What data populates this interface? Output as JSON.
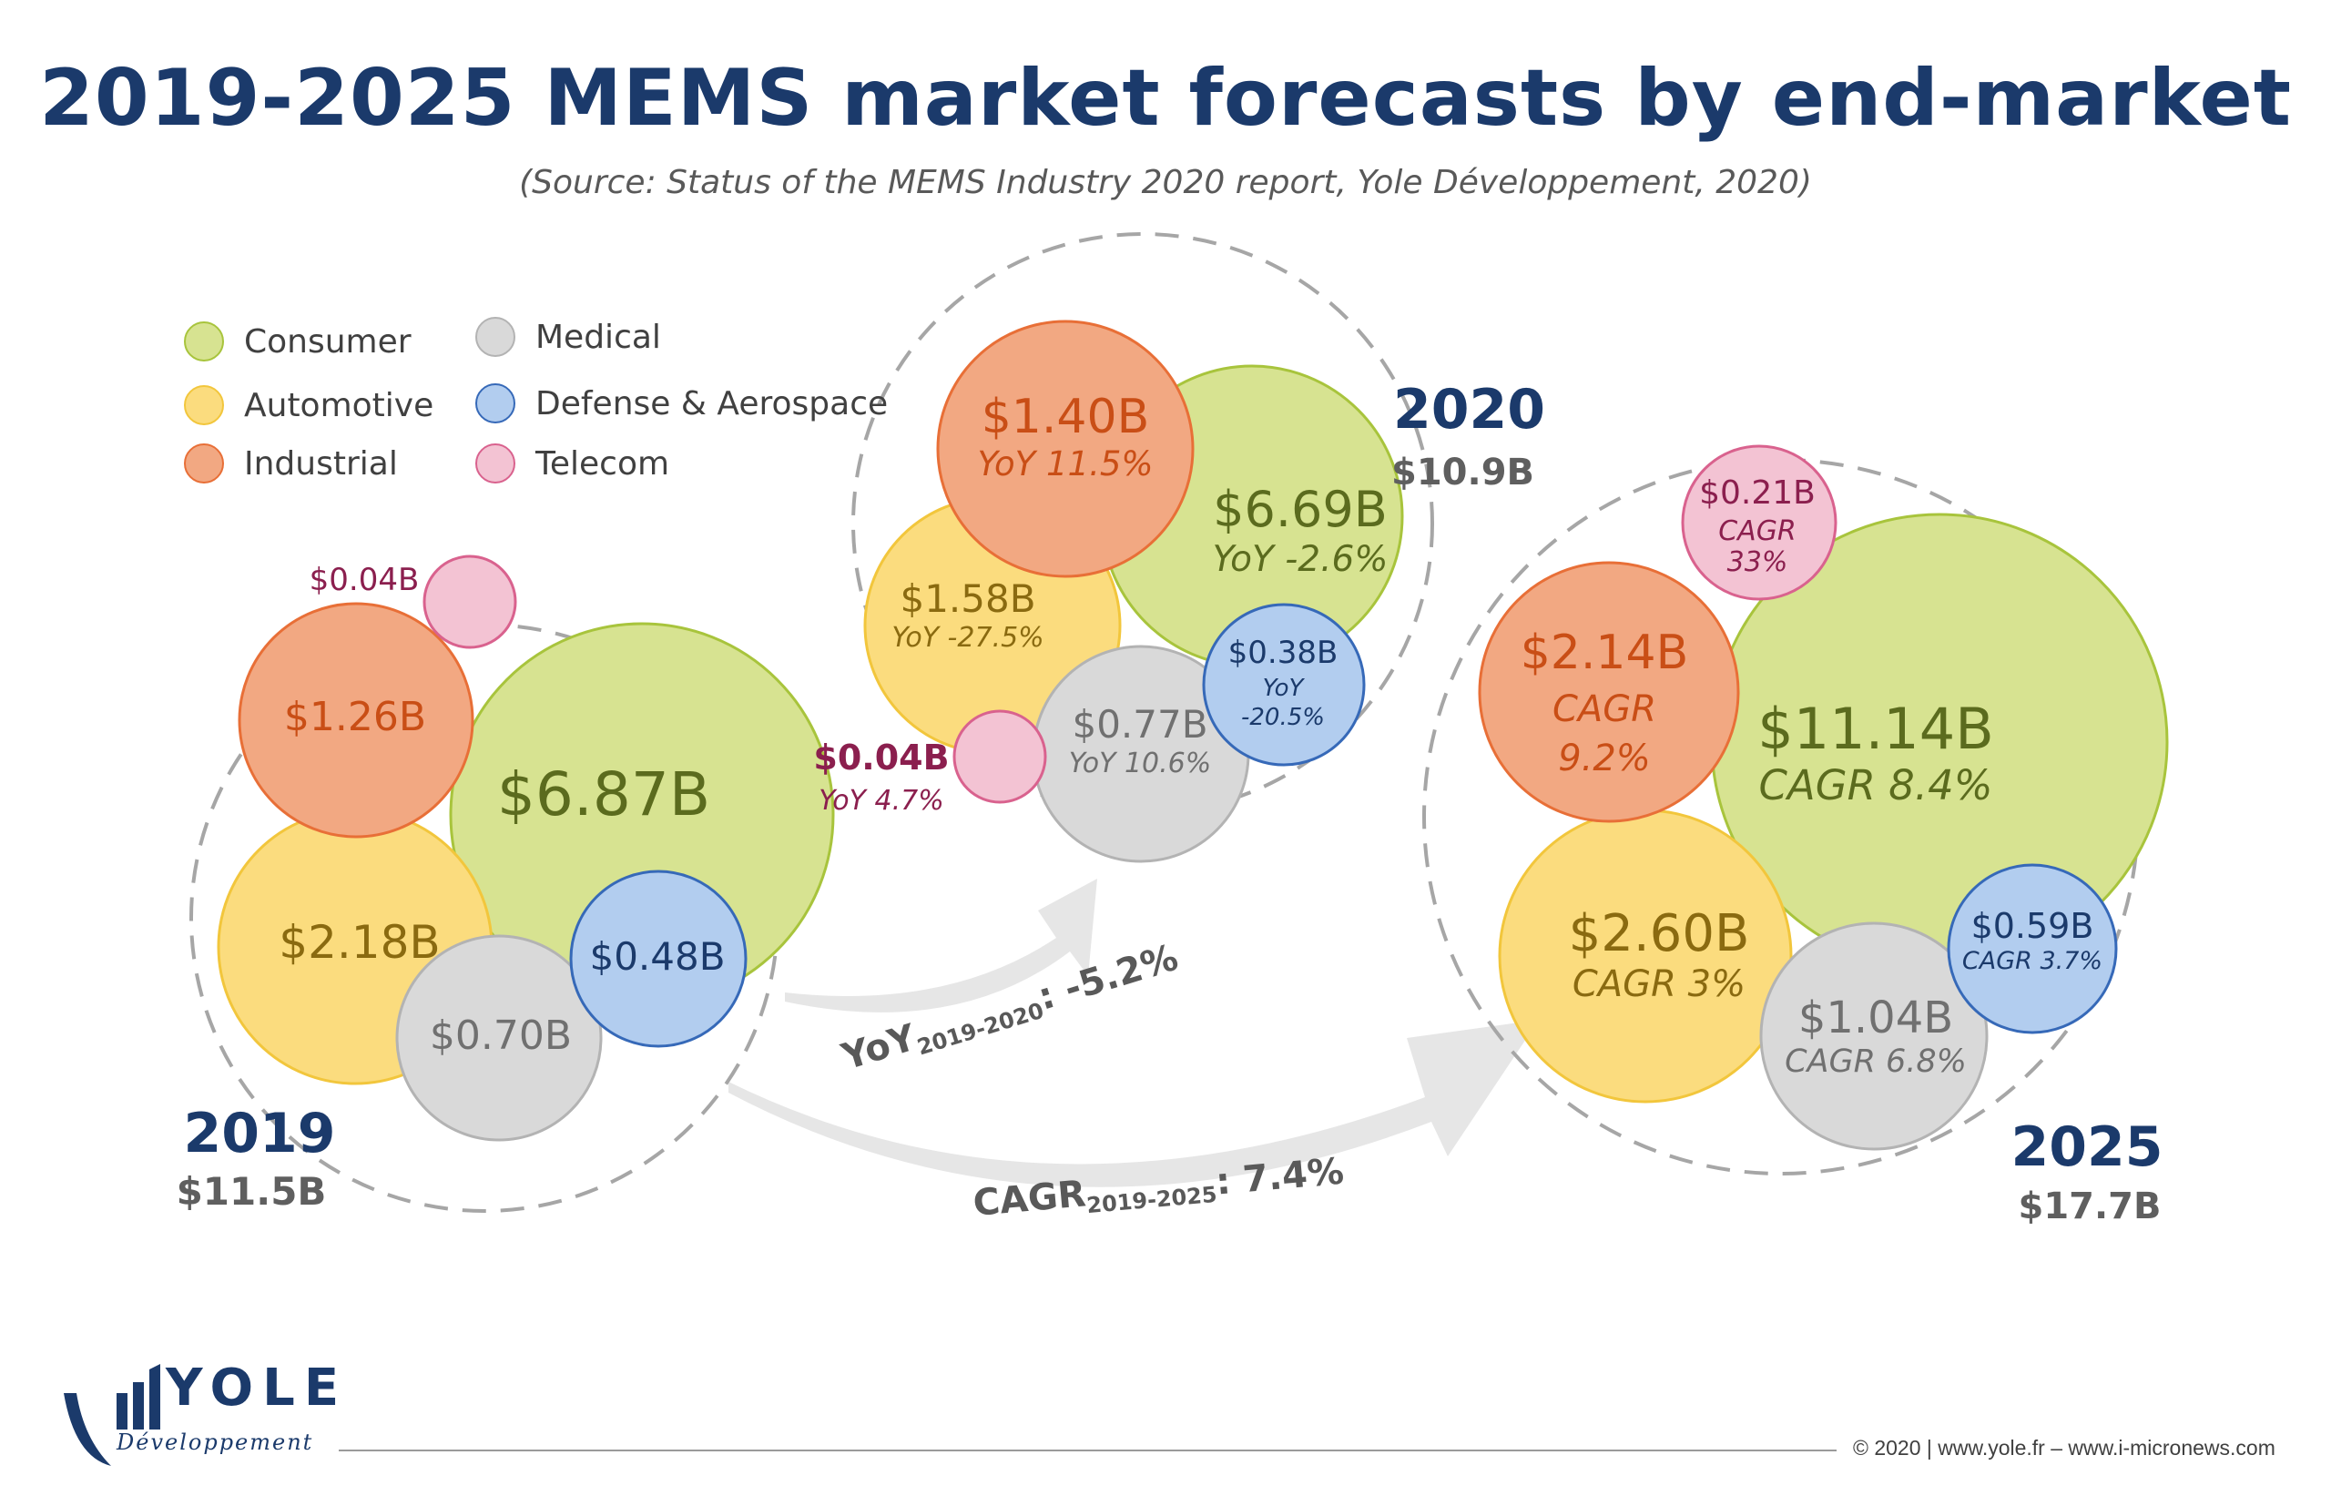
{
  "title": "2019-2025 MEMS market forecasts by end-market",
  "subtitle": "(Source: Status of the MEMS Industry 2020 report, Yole Développement, 2020)",
  "colors": {
    "Consumer": {
      "fill": "#d7e391",
      "stroke": "#a8c43c",
      "text": "#5b6b1e"
    },
    "Automotive": {
      "fill": "#fbdc7e",
      "stroke": "#f2c63c",
      "text": "#8a6a10"
    },
    "Industrial": {
      "fill": "#f2a882",
      "stroke": "#e86f37",
      "text": "#c94e16"
    },
    "Medical": {
      "fill": "#d9d9d9",
      "stroke": "#b3b3b3",
      "text": "#707070"
    },
    "Defense & Aerospace": {
      "fill": "#b2cdef",
      "stroke": "#3669b8",
      "text": "#1b3a6b"
    },
    "Telecom": {
      "fill": "#f3c3d3",
      "stroke": "#d9628e",
      "text": "#8b1f4e"
    },
    "year_title": "#1b3a6b",
    "total": "#5f5f5f",
    "arrow": "#e6e6e6",
    "growth_text": "#595959"
  },
  "chart_data": {
    "type": "bubble",
    "title": "2019-2025 MEMS market forecasts by end-market",
    "legend": [
      "Consumer",
      "Automotive",
      "Industrial",
      "Medical",
      "Defense & Aerospace",
      "Telecom"
    ],
    "years": [
      {
        "year": "2019",
        "total": "$11.5B",
        "segments": [
          {
            "market": "Consumer",
            "value": 6.87,
            "label": "$6.87B",
            "growth": ""
          },
          {
            "market": "Automotive",
            "value": 2.18,
            "label": "$2.18B",
            "growth": ""
          },
          {
            "market": "Industrial",
            "value": 1.26,
            "label": "$1.26B",
            "growth": ""
          },
          {
            "market": "Medical",
            "value": 0.7,
            "label": "$0.70B",
            "growth": ""
          },
          {
            "market": "Defense & Aerospace",
            "value": 0.48,
            "label": "$0.48B",
            "growth": ""
          },
          {
            "market": "Telecom",
            "value": 0.04,
            "label": "$0.04B",
            "growth": ""
          }
        ]
      },
      {
        "year": "2020",
        "total": "$10.9B",
        "segments": [
          {
            "market": "Consumer",
            "value": 6.69,
            "label": "$6.69B",
            "growth": "YoY -2.6%"
          },
          {
            "market": "Automotive",
            "value": 1.58,
            "label": "$1.58B",
            "growth": "YoY -27.5%"
          },
          {
            "market": "Industrial",
            "value": 1.4,
            "label": "$1.40B",
            "growth": "YoY 11.5%"
          },
          {
            "market": "Medical",
            "value": 0.77,
            "label": "$0.77B",
            "growth": "YoY 10.6%"
          },
          {
            "market": "Defense & Aerospace",
            "value": 0.38,
            "label": "$0.38B",
            "growth": "YoY -20.5%"
          },
          {
            "market": "Telecom",
            "value": 0.04,
            "label": "$0.04B",
            "growth": "YoY 4.7%"
          }
        ]
      },
      {
        "year": "2025",
        "total": "$17.7B",
        "segments": [
          {
            "market": "Consumer",
            "value": 11.14,
            "label": "$11.14B",
            "growth": "CAGR 8.4%"
          },
          {
            "market": "Automotive",
            "value": 2.6,
            "label": "$2.60B",
            "growth": "CAGR 3%"
          },
          {
            "market": "Industrial",
            "value": 2.14,
            "label": "$2.14B",
            "growth": "CAGR 9.2%"
          },
          {
            "market": "Medical",
            "value": 1.04,
            "label": "$1.04B",
            "growth": "CAGR 6.8%"
          },
          {
            "market": "Defense & Aerospace",
            "value": 0.59,
            "label": "$0.59B",
            "growth": "CAGR 3.7%"
          },
          {
            "market": "Telecom",
            "value": 0.21,
            "label": "$0.21B",
            "growth": "CAGR 33%"
          }
        ]
      }
    ],
    "growth_arrows": [
      {
        "prefix": "YoY",
        "period": "2019-2020",
        "value": "-5.2%"
      },
      {
        "prefix": "CAGR",
        "period": "2019-2025",
        "value": "7.4%"
      }
    ]
  },
  "logo": {
    "name": "YOLE",
    "subname": "Développement"
  },
  "footer": {
    "copyright": "© 2020 | www.yole.fr – www.i-micronews.com"
  }
}
